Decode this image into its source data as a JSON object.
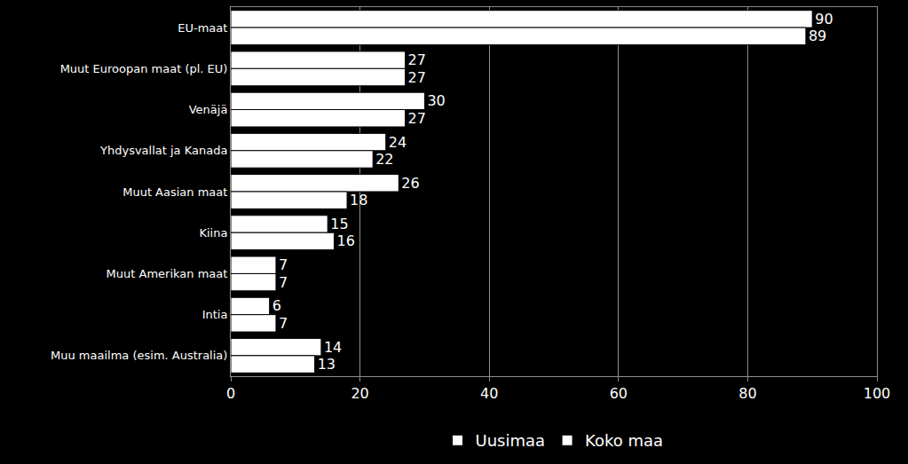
{
  "chart_data": {
    "type": "bar",
    "orientation": "horizontal",
    "categories": [
      "EU-maat",
      "Muut Euroopan maat (pl. EU)",
      "Venäjä",
      "Yhdysvallat ja Kanada",
      "Muut Aasian maat",
      "Kiina",
      "Muut Amerikan maat",
      "Intia",
      "Muu maailma (esim. Australia)"
    ],
    "series": [
      {
        "name": "Uusimaa",
        "color": "#ffffff",
        "values": [
          90,
          27,
          30,
          24,
          26,
          15,
          7,
          6,
          14
        ]
      },
      {
        "name": "Koko maa",
        "color": "#ffffff",
        "values": [
          89,
          27,
          27,
          22,
          18,
          16,
          7,
          7,
          13
        ]
      }
    ],
    "xlim": [
      0,
      100
    ],
    "xticks": [
      0,
      20,
      40,
      60,
      80,
      100
    ],
    "grid": true,
    "data_labels": true,
    "legend": "bottom"
  }
}
